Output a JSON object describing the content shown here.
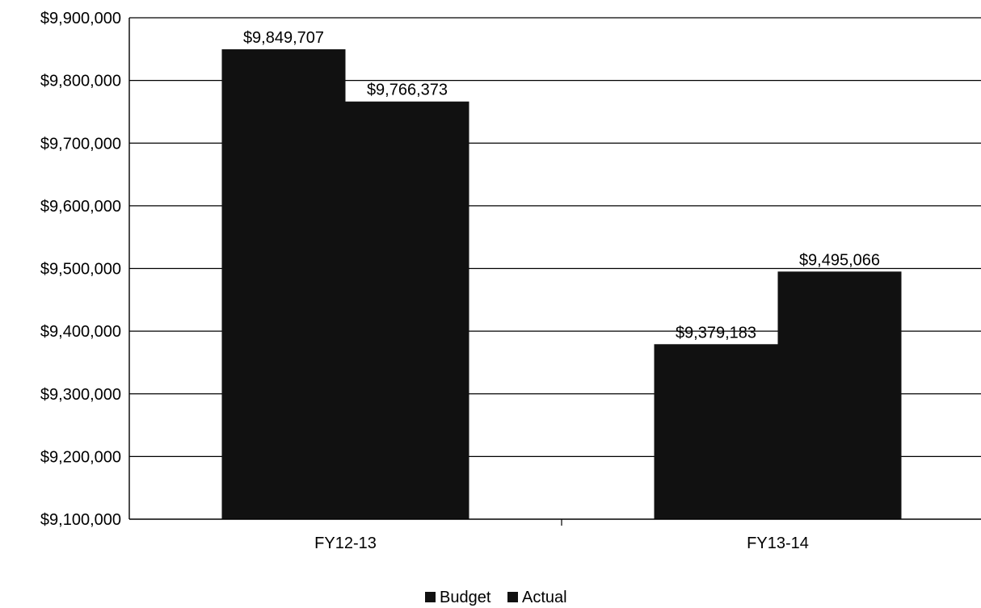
{
  "chart_data": {
    "type": "bar",
    "title": "",
    "xlabel": "",
    "ylabel": "",
    "categories": [
      "FY12-13",
      "FY13-14"
    ],
    "series": [
      {
        "name": "Budget",
        "values": [
          9849707,
          9379183
        ],
        "labels": [
          "$9,849,707",
          "$9,379,183"
        ],
        "color": "#111111"
      },
      {
        "name": "Actual",
        "values": [
          9766373,
          9495066
        ],
        "labels": [
          "$9,766,373",
          "$9,495,066"
        ],
        "color": "#111111"
      }
    ],
    "ylim": [
      9100000,
      9900000
    ],
    "yticks": [
      9100000,
      9200000,
      9300000,
      9400000,
      9500000,
      9600000,
      9700000,
      9800000,
      9900000
    ],
    "ytick_labels": [
      "$9,100,000",
      "$9,200,000",
      "$9,300,000",
      "$9,400,000",
      "$9,500,000",
      "$9,600,000",
      "$9,700,000",
      "$9,800,000",
      "$9,900,000"
    ],
    "grid": true,
    "legend": "bottom-center"
  }
}
